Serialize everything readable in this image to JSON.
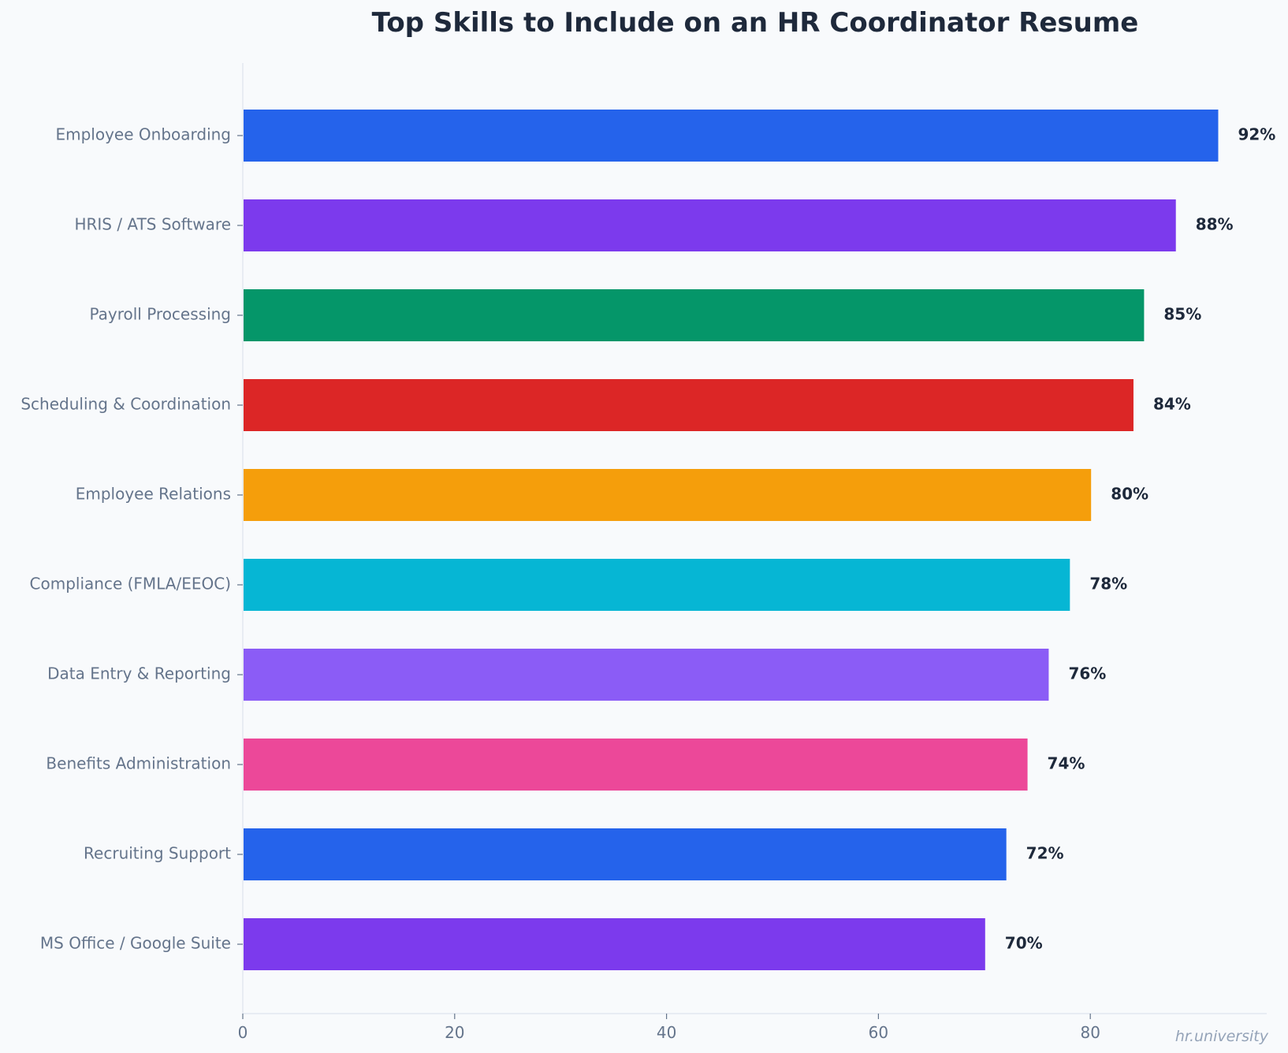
{
  "chart_data": {
    "type": "bar",
    "orientation": "horizontal",
    "title": "Top Skills to Include on an HR Coordinator Resume",
    "xlabel": "",
    "ylabel": "",
    "xlim": [
      0,
      97
    ],
    "x_ticks": [
      0,
      20,
      40,
      60,
      80
    ],
    "grid": false,
    "legend": "none",
    "value_suffix": "%",
    "categories": [
      "Employee Onboarding",
      "HRIS / ATS Software",
      "Payroll Processing",
      "Scheduling & Coordination",
      "Employee Relations",
      "Compliance (FMLA/EEOC)",
      "Data Entry & Reporting",
      "Benefits Administration",
      "Recruiting Support",
      "MS Office / Google Suite"
    ],
    "values": [
      92,
      88,
      85,
      84,
      80,
      78,
      76,
      74,
      72,
      70
    ],
    "value_labels": [
      "92%",
      "88%",
      "85%",
      "84%",
      "80%",
      "78%",
      "76%",
      "74%",
      "72%",
      "70%"
    ],
    "colors": [
      "#2563eb",
      "#7c3aed",
      "#059669",
      "#dc2626",
      "#f59e0b",
      "#06b6d4",
      "#8b5cf6",
      "#ec4899",
      "#2563eb",
      "#7c3aed"
    ]
  },
  "watermark": "hr.university"
}
